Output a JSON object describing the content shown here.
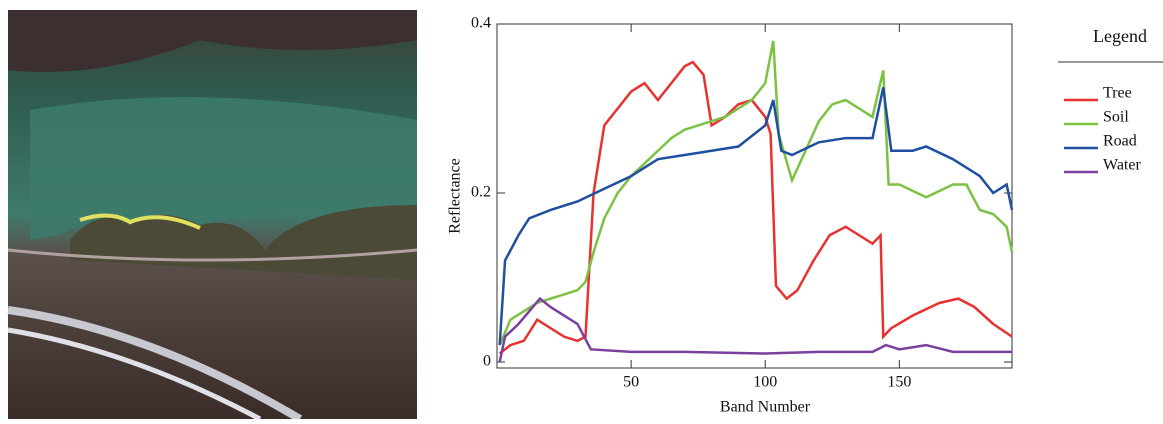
{
  "chart_data": {
    "type": "line",
    "xlabel": "Band Number",
    "ylabel": "Reflectance",
    "legend_title": "Legend",
    "legend": "right",
    "xlim": [
      0,
      192
    ],
    "ylim": [
      0,
      0.4
    ],
    "xticks": [
      50,
      100,
      150
    ],
    "yticks": [
      0,
      0.2,
      0.4
    ],
    "series": [
      {
        "name": "Tree",
        "color": "#e8322f",
        "x": [
          1,
          5,
          10,
          15,
          20,
          25,
          30,
          33,
          36,
          40,
          45,
          50,
          55,
          60,
          65,
          70,
          73,
          77,
          80,
          85,
          90,
          95,
          100,
          102,
          104,
          108,
          112,
          118,
          124,
          130,
          135,
          140,
          143,
          144,
          147,
          155,
          165,
          172,
          178,
          185,
          192
        ],
        "values": [
          0.01,
          0.02,
          0.025,
          0.05,
          0.04,
          0.03,
          0.025,
          0.03,
          0.2,
          0.28,
          0.3,
          0.32,
          0.33,
          0.31,
          0.33,
          0.35,
          0.355,
          0.34,
          0.28,
          0.29,
          0.305,
          0.31,
          0.29,
          0.27,
          0.09,
          0.075,
          0.085,
          0.12,
          0.15,
          0.16,
          0.15,
          0.14,
          0.15,
          0.03,
          0.04,
          0.055,
          0.07,
          0.075,
          0.065,
          0.045,
          0.03
        ]
      },
      {
        "name": "Soil",
        "color": "#7cc242",
        "x": [
          1,
          5,
          10,
          15,
          20,
          25,
          30,
          33,
          36,
          40,
          45,
          50,
          55,
          60,
          65,
          70,
          75,
          80,
          85,
          90,
          95,
          100,
          103,
          105,
          110,
          115,
          120,
          125,
          130,
          135,
          140,
          144,
          146,
          150,
          160,
          170,
          175,
          180,
          185,
          190,
          192
        ],
        "values": [
          0.02,
          0.05,
          0.06,
          0.07,
          0.075,
          0.08,
          0.085,
          0.095,
          0.13,
          0.17,
          0.2,
          0.22,
          0.235,
          0.25,
          0.265,
          0.275,
          0.28,
          0.285,
          0.29,
          0.3,
          0.31,
          0.33,
          0.38,
          0.27,
          0.215,
          0.25,
          0.285,
          0.305,
          0.31,
          0.3,
          0.29,
          0.345,
          0.21,
          0.21,
          0.195,
          0.21,
          0.21,
          0.18,
          0.175,
          0.16,
          0.13
        ]
      },
      {
        "name": "Road",
        "color": "#1f4fa0",
        "x": [
          1,
          3,
          8,
          12,
          20,
          30,
          40,
          50,
          60,
          70,
          80,
          90,
          100,
          103,
          106,
          110,
          120,
          130,
          140,
          144,
          147,
          155,
          160,
          170,
          180,
          185,
          190,
          192
        ],
        "values": [
          0.02,
          0.12,
          0.15,
          0.17,
          0.18,
          0.19,
          0.205,
          0.22,
          0.24,
          0.245,
          0.25,
          0.255,
          0.28,
          0.31,
          0.25,
          0.245,
          0.26,
          0.265,
          0.265,
          0.325,
          0.25,
          0.25,
          0.255,
          0.24,
          0.22,
          0.2,
          0.21,
          0.18
        ]
      },
      {
        "name": "Water",
        "color": "#7b3f9e",
        "x": [
          1,
          3,
          8,
          12,
          16,
          20,
          25,
          30,
          35,
          50,
          70,
          100,
          120,
          140,
          145,
          150,
          160,
          170,
          192
        ],
        "values": [
          0.0,
          0.03,
          0.045,
          0.06,
          0.075,
          0.065,
          0.055,
          0.045,
          0.015,
          0.012,
          0.012,
          0.01,
          0.012,
          0.012,
          0.02,
          0.015,
          0.02,
          0.012,
          0.012
        ]
      }
    ]
  }
}
